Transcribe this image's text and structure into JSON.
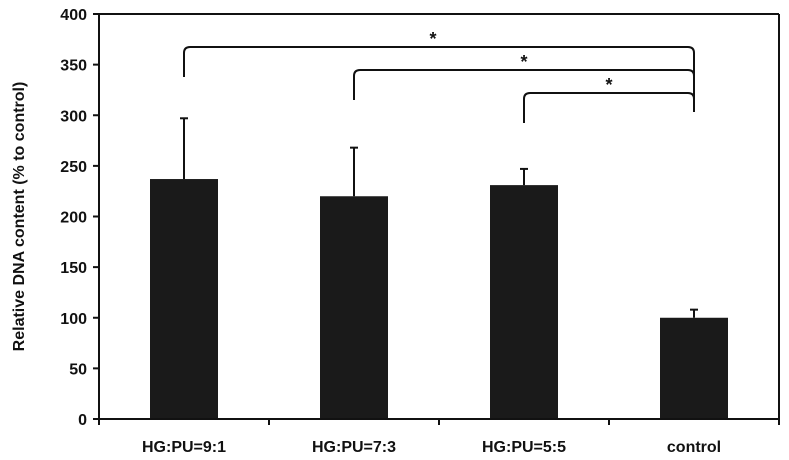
{
  "colors": {
    "bar": "#1a1a1a",
    "axis": "#111111",
    "background": "#ffffff"
  },
  "chart_data": {
    "type": "bar",
    "title": "",
    "xlabel": "",
    "ylabel": "Relative DNA content (% to control)",
    "ylim": [
      0,
      400
    ],
    "yticks": [
      0,
      50,
      100,
      150,
      200,
      250,
      300,
      350,
      400
    ],
    "ytick_labels": [
      "0",
      "50",
      "100",
      "150",
      "200",
      "250",
      "300",
      "350",
      "400"
    ],
    "grid": false,
    "legend": "none",
    "categories": [
      "HG:PU=9:1",
      "HG:PU=7:3",
      "HG:PU=5:5",
      "control"
    ],
    "values": [
      237,
      220,
      231,
      100
    ],
    "error_bars": [
      60,
      48,
      16,
      8
    ],
    "significance": [
      {
        "from": "HG:PU=9:1",
        "to": "control",
        "label": "*"
      },
      {
        "from": "HG:PU=7:3",
        "to": "control",
        "label": "*"
      },
      {
        "from": "HG:PU=5:5",
        "to": "control",
        "label": "*"
      }
    ]
  }
}
